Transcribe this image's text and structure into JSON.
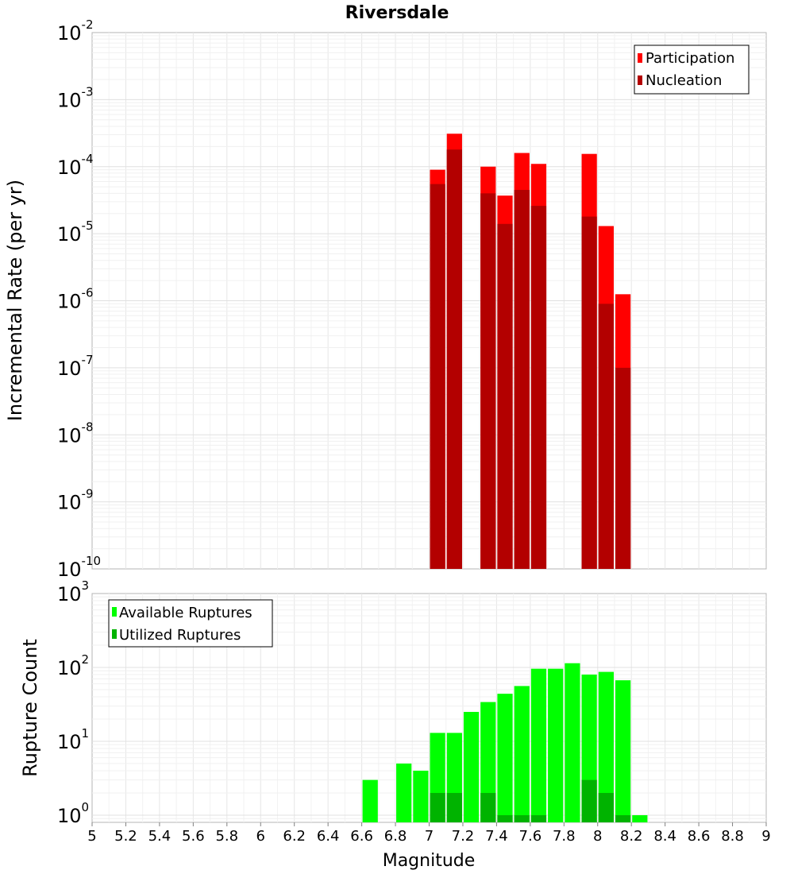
{
  "chart_data": [
    {
      "type": "bar",
      "title": "Riversdale",
      "xlabel": "",
      "ylabel": "Incremental Rate (per yr)",
      "y_scale": "log",
      "ylim": [
        1e-10,
        0.01
      ],
      "xlim": [
        5,
        9
      ],
      "bar_width": 0.1,
      "y_ticks": [
        {
          "value": 1e-10,
          "base": "10",
          "exp": "-10"
        },
        {
          "value": 1e-09,
          "base": "10",
          "exp": "-9"
        },
        {
          "value": 1e-08,
          "base": "10",
          "exp": "-8"
        },
        {
          "value": 1e-07,
          "base": "10",
          "exp": "-7"
        },
        {
          "value": 1e-06,
          "base": "10",
          "exp": "-6"
        },
        {
          "value": 1e-05,
          "base": "10",
          "exp": "-5"
        },
        {
          "value": 0.0001,
          "base": "10",
          "exp": "-4"
        },
        {
          "value": 0.001,
          "base": "10",
          "exp": "-3"
        },
        {
          "value": 0.01,
          "base": "10",
          "exp": "-2"
        }
      ],
      "legend_position": "top-right",
      "series": [
        {
          "name": "Participation",
          "color": "#ff0000",
          "x": [
            7.05,
            7.15,
            7.35,
            7.45,
            7.55,
            7.65,
            7.95,
            8.05,
            8.15
          ],
          "values": [
            9e-05,
            0.00031,
            0.0001,
            3.7e-05,
            0.00016,
            0.00011,
            0.000155,
            1.3e-05,
            1.25e-06
          ]
        },
        {
          "name": "Nucleation",
          "color": "#b30000",
          "x": [
            7.05,
            7.15,
            7.35,
            7.45,
            7.55,
            7.65,
            7.95,
            8.05,
            8.15
          ],
          "values": [
            5.5e-05,
            0.00018,
            4e-05,
            1.4e-05,
            4.5e-05,
            2.6e-05,
            1.8e-05,
            9e-07,
            1e-07
          ]
        }
      ]
    },
    {
      "type": "bar",
      "title": "",
      "xlabel": "Magnitude",
      "ylabel": "Rupture Count",
      "y_scale": "log",
      "ylim": [
        0.8,
        1000
      ],
      "xlim": [
        5,
        9
      ],
      "bar_width": 0.1,
      "x_ticks": [
        "5",
        "5.2",
        "5.4",
        "5.6",
        "5.8",
        "6",
        "6.2",
        "6.4",
        "6.6",
        "6.8",
        "7",
        "7.2",
        "7.4",
        "7.6",
        "7.8",
        "8",
        "8.2",
        "8.4",
        "8.6",
        "8.8",
        "9"
      ],
      "y_ticks": [
        {
          "value": 1,
          "base": "10",
          "exp": "0"
        },
        {
          "value": 10,
          "base": "10",
          "exp": "1"
        },
        {
          "value": 100,
          "base": "10",
          "exp": "2"
        },
        {
          "value": 1000,
          "base": "10",
          "exp": "3"
        }
      ],
      "legend_position": "top-left",
      "series": [
        {
          "name": "Available Ruptures",
          "color": "#00ff00",
          "x": [
            6.65,
            6.85,
            6.95,
            7.05,
            7.15,
            7.25,
            7.35,
            7.45,
            7.55,
            7.65,
            7.75,
            7.85,
            7.95,
            8.05,
            8.15,
            8.25
          ],
          "values": [
            3,
            5,
            4,
            13,
            13,
            25,
            34,
            44,
            56,
            96,
            96,
            114,
            80,
            87,
            67,
            1
          ]
        },
        {
          "name": "Utilized Ruptures",
          "color": "#00b300",
          "x": [
            7.05,
            7.15,
            7.35,
            7.45,
            7.55,
            7.65,
            7.95,
            8.05,
            8.15
          ],
          "values": [
            2,
            2,
            2,
            1,
            1,
            1,
            3,
            2,
            1
          ]
        }
      ]
    }
  ]
}
